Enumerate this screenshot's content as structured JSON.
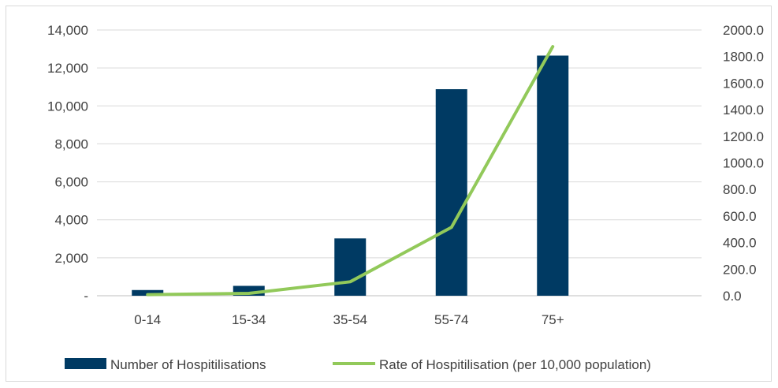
{
  "chart_data": {
    "type": "bar",
    "categories": [
      "0-14",
      "15-34",
      "35-54",
      "55-74",
      "75+"
    ],
    "series": [
      {
        "name": "Number of Hospitilisations",
        "type": "bar",
        "axis": "left",
        "color": "#003a63",
        "values": [
          300,
          520,
          3020,
          10880,
          12650
        ]
      },
      {
        "name": "Rate of Hospitilisation (per 10,000 population)",
        "type": "line",
        "axis": "right",
        "color": "#92c95a",
        "values": [
          8,
          18,
          105,
          515,
          1875
        ]
      }
    ],
    "y_left": {
      "ylim": [
        0,
        14000
      ],
      "ticks": [
        0,
        2000,
        4000,
        6000,
        8000,
        10000,
        12000,
        14000
      ],
      "tick_labels": [
        "-",
        "2,000",
        "4,000",
        "6,000",
        "8,000",
        "10,000",
        "12,000",
        "14,000"
      ]
    },
    "y_right": {
      "ylim": [
        0,
        2000
      ],
      "ticks": [
        0,
        200,
        400,
        600,
        800,
        1000,
        1200,
        1400,
        1600,
        1800,
        2000
      ],
      "tick_labels": [
        "0.0",
        "200.0",
        "400.0",
        "600.0",
        "800.0",
        "1000.0",
        "1200.0",
        "1400.0",
        "1600.0",
        "1800.0",
        "2000.0"
      ]
    },
    "grid": true,
    "legend_position": "bottom"
  }
}
